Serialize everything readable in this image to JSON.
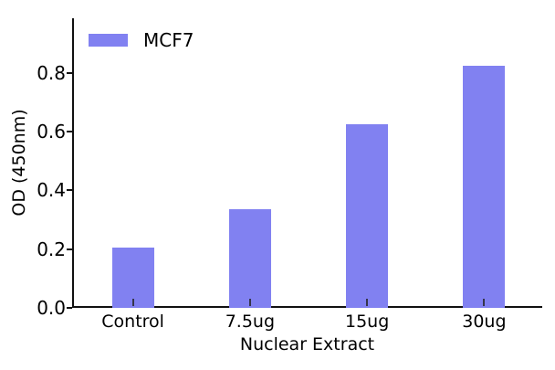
{
  "chart_data": {
    "type": "bar",
    "title": "",
    "xlabel": "Nuclear Extract",
    "ylabel": "OD (450nm)",
    "categories": [
      "Control",
      "7.5ug",
      "15ug",
      "30ug"
    ],
    "series": [
      {
        "name": "MCF7",
        "values": [
          0.205,
          0.335,
          0.625,
          0.825
        ]
      }
    ],
    "ylim": [
      0,
      0.98
    ],
    "yticks": [
      0.0,
      0.2,
      0.4,
      0.6,
      0.8
    ],
    "ytick_labels": [
      "0.0",
      "0.2",
      "0.4",
      "0.6",
      "0.8"
    ],
    "grid": false,
    "legend_position": "upper-left",
    "colors": {
      "bar": "#8181f1",
      "axis": "#111111",
      "text": "#000000",
      "background": "#ffffff"
    }
  },
  "legend": {
    "label": "MCF7"
  },
  "axes": {
    "xlabel": "Nuclear Extract",
    "ylabel": "OD (450nm)"
  }
}
